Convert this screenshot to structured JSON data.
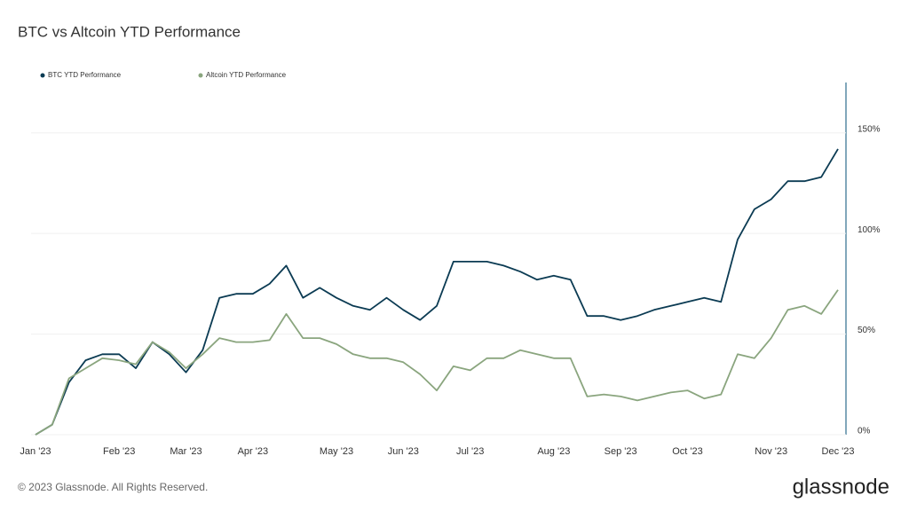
{
  "chart_data": {
    "type": "line",
    "title": "BTC vs Altcoin YTD Performance",
    "categories": [
      "Jan '23",
      null,
      null,
      null,
      null,
      "Feb '23",
      null,
      null,
      null,
      "Mar '23",
      null,
      null,
      null,
      "Apr '23",
      null,
      null,
      null,
      null,
      "May '23",
      null,
      null,
      null,
      "Jun '23",
      null,
      null,
      null,
      "Jul '23",
      null,
      null,
      null,
      null,
      "Aug '23",
      null,
      null,
      null,
      "Sep '23",
      null,
      null,
      null,
      "Oct '23",
      null,
      null,
      null,
      null,
      "Nov '23",
      null,
      null,
      null,
      "Dec '23"
    ],
    "series": [
      {
        "name": "BTC YTD Performance",
        "color": "#0b3b53",
        "values": [
          0,
          5,
          26,
          37,
          40,
          40,
          33,
          46,
          40,
          31,
          42,
          68,
          70,
          70,
          75,
          84,
          68,
          73,
          68,
          64,
          62,
          68,
          62,
          57,
          64,
          86,
          86,
          86,
          84,
          81,
          77,
          79,
          77,
          59,
          59,
          57,
          59,
          62,
          64,
          66,
          68,
          66,
          97,
          112,
          117,
          126,
          126,
          128,
          142
        ]
      },
      {
        "name": "Altcoin YTD Performance",
        "color": "#8aa57e",
        "values": [
          0,
          5,
          28,
          33,
          38,
          37,
          35,
          46,
          41,
          33,
          40,
          48,
          46,
          46,
          47,
          60,
          48,
          48,
          45,
          40,
          38,
          38,
          36,
          30,
          22,
          34,
          32,
          38,
          38,
          42,
          40,
          38,
          38,
          19,
          20,
          19,
          17,
          19,
          21,
          22,
          18,
          20,
          40,
          38,
          48,
          62,
          64,
          60,
          72
        ]
      }
    ],
    "ylim": [
      0,
      175
    ],
    "yticks": [
      {
        "value": 0,
        "label": "0%"
      },
      {
        "value": 50,
        "label": "50%"
      },
      {
        "value": 100,
        "label": "100%"
      },
      {
        "value": 150,
        "label": "150%"
      }
    ],
    "grid": true
  },
  "footer": {
    "copyright": "© 2023 Glassnode. All Rights Reserved.",
    "brand": "glassnode"
  }
}
